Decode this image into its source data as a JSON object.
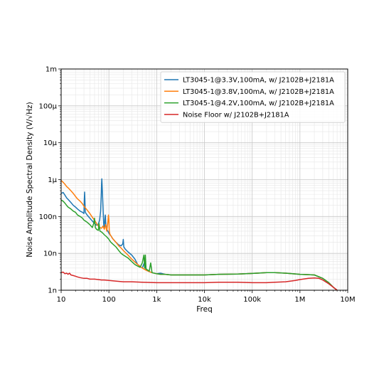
{
  "chart_data": {
    "type": "line",
    "title": "",
    "xlabel": "Freq",
    "ylabel": "Noise Amplitude Spectral Density (V/√Hz)",
    "x_scale": "log",
    "y_scale": "log",
    "xlim": [
      10,
      10000000
    ],
    "ylim": [
      1e-09,
      0.001
    ],
    "grid": true,
    "legend_position": "top-right",
    "xticks": [
      {
        "value": 10,
        "label": "10"
      },
      {
        "value": 100,
        "label": "100"
      },
      {
        "value": 1000,
        "label": "1k"
      },
      {
        "value": 10000,
        "label": "10k"
      },
      {
        "value": 100000,
        "label": "100k"
      },
      {
        "value": 1000000,
        "label": "1M"
      },
      {
        "value": 10000000,
        "label": "10M"
      }
    ],
    "yticks": [
      {
        "value": 1e-09,
        "label": "1n"
      },
      {
        "value": 1e-08,
        "label": "10n"
      },
      {
        "value": 1e-07,
        "label": "100n"
      },
      {
        "value": 1e-06,
        "label": "1µ"
      },
      {
        "value": 1e-05,
        "label": "10µ"
      },
      {
        "value": 0.0001,
        "label": "100µ"
      },
      {
        "value": 0.001,
        "label": "1m"
      }
    ],
    "series": [
      {
        "name": "LT3045-1@3.3V,100mA, w/ J2102B+J2181A",
        "color": "#1f77b4",
        "x": [
          10,
          11,
          12,
          13,
          14,
          16,
          18,
          20,
          22,
          25,
          28,
          30,
          30.5,
          31,
          31.5,
          32,
          35,
          40,
          45,
          50,
          55,
          60,
          64,
          67,
          69,
          70,
          71,
          72,
          74,
          76,
          78,
          80,
          82,
          84,
          86,
          90,
          95,
          100,
          110,
          120,
          140,
          160,
          180,
          195,
          200,
          205,
          220,
          250,
          300,
          350,
          400,
          500,
          550,
          600,
          700,
          800,
          1000,
          1200,
          1500,
          2000,
          3000,
          5000,
          10000,
          20000,
          50000,
          100000,
          200000,
          300000,
          500000,
          1000000,
          1500000,
          2000000,
          3000000,
          4000000,
          5000000,
          6000000
        ],
        "y": [
          4.2e-07,
          4.5e-07,
          3.8e-07,
          3.2e-07,
          2.9e-07,
          2.4e-07,
          2e-07,
          1.8e-07,
          1.6e-07,
          1.4e-07,
          1.3e-07,
          1.2e-07,
          2.8e-07,
          4.6e-07,
          2.5e-07,
          1.3e-07,
          1.1e-07,
          9e-08,
          7.5e-08,
          6.5e-08,
          5.8e-08,
          6.2e-08,
          8e-08,
          1.4e-07,
          3.5e-07,
          7.5e-07,
          1.05e-06,
          7e-07,
          3e-07,
          1.2e-07,
          6e-08,
          5e-08,
          8e-08,
          1.1e-07,
          6e-08,
          4.5e-08,
          4e-08,
          3.5e-08,
          3e-08,
          2.5e-08,
          2e-08,
          1.7e-08,
          1.6e-08,
          1.8e-08,
          2.4e-08,
          1.5e-08,
          1.3e-08,
          1.1e-08,
          9e-09,
          7e-09,
          5e-09,
          4e-09,
          5.5e-09,
          3.5e-09,
          3.2e-09,
          3e-09,
          2.8e-09,
          2.9e-09,
          2.7e-09,
          2.6e-09,
          2.6e-09,
          2.6e-09,
          2.6e-09,
          2.7e-09,
          2.75e-09,
          2.85e-09,
          3e-09,
          3e-09,
          2.9e-09,
          2.7e-09,
          2.65e-09,
          2.6e-09,
          2.1e-09,
          1.6e-09,
          1.2e-09,
          1e-09
        ]
      },
      {
        "name": "LT3045-1@3.8V,100mA, w/ J2102B+J2181A",
        "color": "#ff7f0e",
        "x": [
          10,
          11,
          12,
          13,
          14,
          16,
          18,
          20,
          22,
          25,
          28,
          30,
          35,
          40,
          45,
          50,
          55,
          60,
          65,
          70,
          75,
          80,
          85,
          90,
          95,
          98,
          100,
          102,
          105,
          110,
          120,
          140,
          160,
          180,
          200,
          250,
          300,
          400,
          500,
          600,
          700,
          800,
          1000,
          1200,
          1500,
          2000,
          3000,
          5000,
          10000,
          20000,
          50000,
          100000,
          200000,
          300000,
          500000,
          1000000,
          1500000,
          2000000,
          3000000,
          4000000,
          5000000,
          6000000
        ],
        "y": [
          9.5e-07,
          8.5e-07,
          7.5e-07,
          6.5e-07,
          6e-07,
          5e-07,
          4.2e-07,
          3.5e-07,
          3e-07,
          2.6e-07,
          2.2e-07,
          1.9e-07,
          1.5e-07,
          1.2e-07,
          9.5e-08,
          8e-08,
          6.5e-08,
          5.5e-08,
          5e-08,
          4.8e-08,
          5.5e-08,
          4.5e-08,
          6e-08,
          4e-08,
          7e-08,
          1.1e-07,
          8e-08,
          4e-08,
          3.3e-08,
          3e-08,
          2.5e-08,
          2e-08,
          1.6e-08,
          1.4e-08,
          1.2e-08,
          9e-09,
          7e-09,
          5e-09,
          4e-09,
          3.5e-09,
          3.2e-09,
          3e-09,
          2.8e-09,
          2.7e-09,
          2.7e-09,
          2.6e-09,
          2.6e-09,
          2.6e-09,
          2.6e-09,
          2.7e-09,
          2.75e-09,
          2.85e-09,
          3e-09,
          3e-09,
          2.9e-09,
          2.7e-09,
          2.65e-09,
          2.6e-09,
          2.1e-09,
          1.6e-09,
          1.2e-09,
          1e-09
        ]
      },
      {
        "name": "LT3045-1@4.2V,100mA, w/ J2102B+J2181A",
        "color": "#2ca02c",
        "x": [
          10,
          11,
          12,
          13,
          14,
          16,
          18,
          20,
          22,
          25,
          28,
          30,
          35,
          40,
          45,
          48,
          50,
          52,
          55,
          60,
          62,
          65,
          70,
          75,
          80,
          90,
          100,
          110,
          120,
          140,
          160,
          180,
          200,
          250,
          300,
          350,
          400,
          450,
          500,
          540,
          560,
          580,
          600,
          650,
          700,
          750,
          800,
          1000,
          1200,
          1500,
          2000,
          3000,
          5000,
          10000,
          20000,
          50000,
          100000,
          200000,
          300000,
          500000,
          1000000,
          1500000,
          2000000,
          3000000,
          4000000,
          5000000,
          6000000
        ],
        "y": [
          2.8e-07,
          2.6e-07,
          2.3e-07,
          2e-07,
          1.8e-07,
          1.6e-07,
          1.4e-07,
          1.3e-07,
          1.1e-07,
          1e-07,
          9e-08,
          8e-08,
          7e-08,
          6e-08,
          5e-08,
          6.5e-08,
          9e-08,
          5e-08,
          4.5e-08,
          4.2e-08,
          6.5e-08,
          4e-08,
          3.8e-08,
          3.5e-08,
          3.2e-08,
          2.8e-08,
          2.4e-08,
          2e-08,
          1.8e-08,
          1.5e-08,
          1.2e-08,
          1e-08,
          9e-09,
          7.5e-09,
          6e-09,
          5e-09,
          4.5e-09,
          4.2e-09,
          5.5e-09,
          9e-09,
          4e-09,
          9e-09,
          3.8e-09,
          3.5e-09,
          3.3e-09,
          5.5e-09,
          3e-09,
          2.8e-09,
          2.7e-09,
          2.7e-09,
          2.6e-09,
          2.6e-09,
          2.6e-09,
          2.6e-09,
          2.7e-09,
          2.75e-09,
          2.85e-09,
          3e-09,
          3e-09,
          2.9e-09,
          2.7e-09,
          2.65e-09,
          2.6e-09,
          2.1e-09,
          1.6e-09,
          1.2e-09,
          1e-09
        ]
      },
      {
        "name": "Noise Floor w/ J2102B+J2181A",
        "color": "#d62728",
        "x": [
          10,
          11,
          12,
          13,
          14,
          15,
          16,
          18,
          20,
          22,
          25,
          30,
          35,
          40,
          50,
          60,
          70,
          80,
          100,
          120,
          150,
          200,
          300,
          500,
          1000,
          2000,
          5000,
          10000,
          20000,
          50000,
          100000,
          200000,
          300000,
          500000,
          800000,
          1000000,
          1500000,
          2000000,
          2500000,
          3000000,
          4000000,
          5000000,
          6000000
        ],
        "y": [
          3e-09,
          3.1e-09,
          2.8e-09,
          2.9e-09,
          2.7e-09,
          2.9e-09,
          2.6e-09,
          2.5e-09,
          2.4e-09,
          2.3e-09,
          2.2e-09,
          2.1e-09,
          2.1e-09,
          2e-09,
          2e-09,
          1.95e-09,
          1.9e-09,
          1.9e-09,
          1.85e-09,
          1.8e-09,
          1.75e-09,
          1.7e-09,
          1.7e-09,
          1.65e-09,
          1.6e-09,
          1.6e-09,
          1.6e-09,
          1.6e-09,
          1.65e-09,
          1.65e-09,
          1.6e-09,
          1.6e-09,
          1.65e-09,
          1.7e-09,
          1.85e-09,
          1.95e-09,
          2.1e-09,
          2.15e-09,
          2.1e-09,
          1.9e-09,
          1.5e-09,
          1.2e-09,
          1e-09
        ]
      }
    ]
  }
}
